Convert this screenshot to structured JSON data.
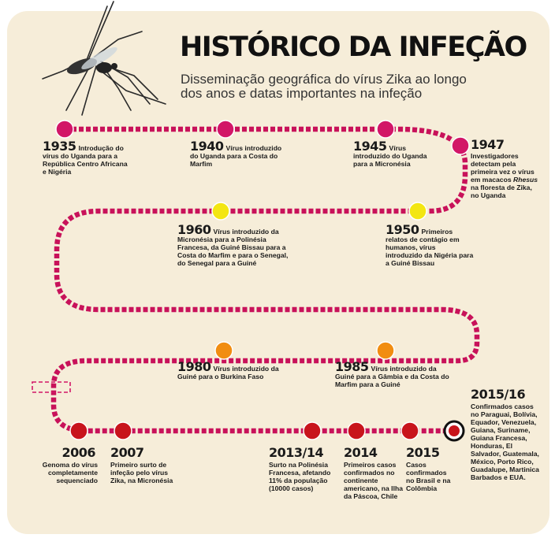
{
  "title": "HISTÓRICO DA INFEÇÃO",
  "subtitle": "Disseminação geográfica do vírus Zika ao longo dos anos e datas importantes na infeção",
  "events": [
    {
      "year": "1935",
      "text": "Introdução do vírus do Uganda para a República Centro Africana e Nigéria"
    },
    {
      "year": "1940",
      "text": "Vírus introduzido do Uganda para a Costa do Marfim"
    },
    {
      "year": "1945",
      "text": "Vírus introduzido do Uganda para a Micronésia"
    },
    {
      "year": "1947",
      "text": "Investigadores detectam pela primeira vez o vírus em macacos ",
      "text_italic": "Rhesus",
      "text_after": " na floresta de Zika, no Uganda"
    },
    {
      "year": "1950",
      "text": "Primeiros relatos de contágio em humanos, vírus introduzido da Nigéria para a Guiné Bissau"
    },
    {
      "year": "1960",
      "text": "Vírus introduzido da Micronésia para a Polinésia Francesa, da Guiné Bissau para a Costa do Marfim e para o Senegal, do Senegal para a Guiné"
    },
    {
      "year": "1980",
      "text": "Vírus introduzido da Guiné para o Burkina Faso"
    },
    {
      "year": "1985",
      "text": "Vírus introduzido da Guiné para a Gâmbia e da Costa do Marfim para a Guiné"
    },
    {
      "year": "2006",
      "text": "Genoma do vírus completamente sequenciado"
    },
    {
      "year": "2007",
      "text": "Primeiro surto de infeção pelo vírus Zika, na Micronésia"
    },
    {
      "year": "2013/14",
      "text": "Surto na Polinésia Francesa, afetando 11% da população (10000 casos)"
    },
    {
      "year": "2014",
      "text": "Primeiros casos confirmados no continente americano, na Ilha da Páscoa, Chile"
    },
    {
      "year": "2015",
      "text": "Casos confirmados no Brasil e na Colômbia"
    },
    {
      "year": "2015/16",
      "text": "Confirmados casos no Paraguai, Bolívia, Equador, Venezuela, Guiana, Suriname, Guiana Francesa, Honduras, El Salvador, Guatemala, México, Porto Rico, Guadalupe, Martinica Barbados e EUA."
    }
  ],
  "colors": {
    "background": "#f6edd9",
    "road": "#c8125a",
    "pink": "#d21667",
    "yellow": "#f3e612",
    "orange": "#f18d11",
    "red": "#c8141c"
  }
}
